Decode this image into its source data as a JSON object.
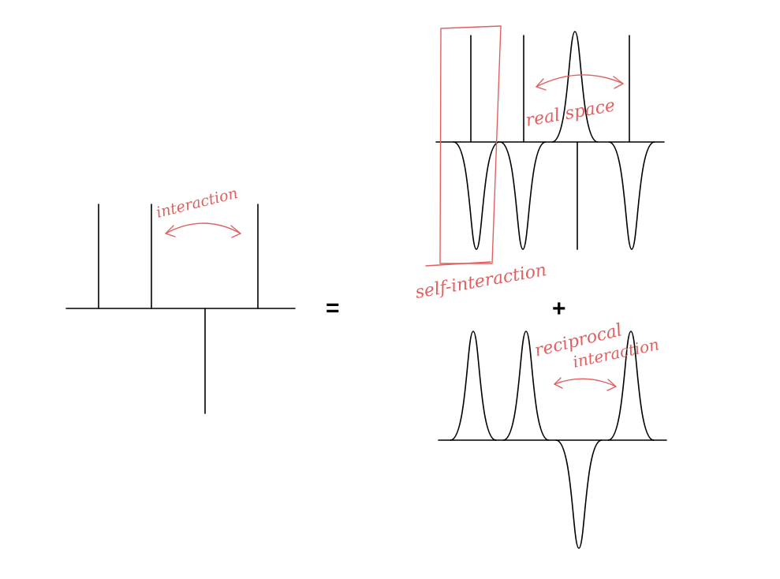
{
  "colors": {
    "ink": "#000000",
    "annotation": "#e06060",
    "background": "#ffffff"
  },
  "operators": {
    "equals": "=",
    "plus": "+"
  },
  "annotations": {
    "interaction": "interaction",
    "real_space": "real space",
    "self_interaction": "self-interaction",
    "reciprocal_interaction_line1": "reciprocal",
    "reciprocal_interaction_line2": "interaction"
  }
}
